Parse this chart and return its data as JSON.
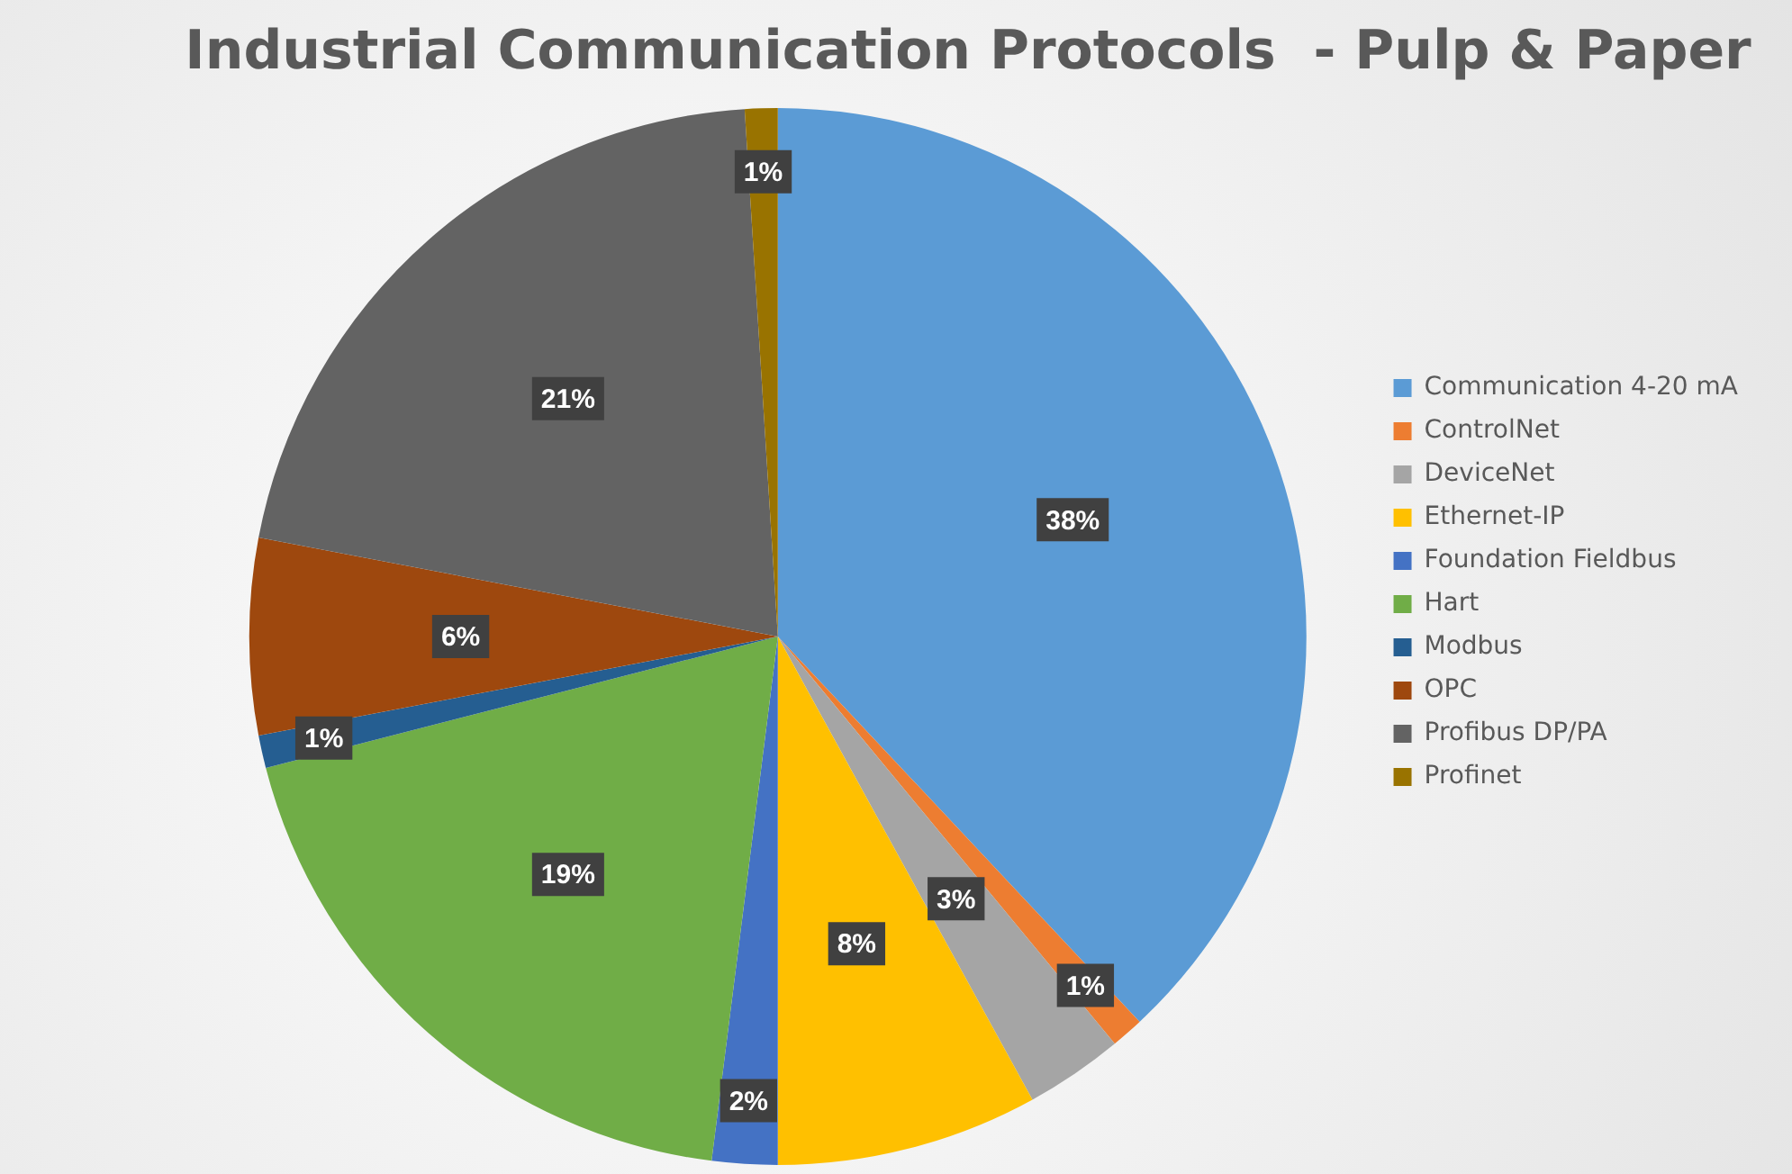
{
  "chart_data": {
    "type": "pie",
    "title": "Industrial Communication Protocols  - Pulp & Paper",
    "categories": [
      "Communication 4-20 mA",
      "ControlNet",
      "DeviceNet",
      "Ethernet-IP",
      "Foundation Fieldbus",
      "Hart",
      "Modbus",
      "OPC",
      "Profibus DP/PA",
      "Profinet"
    ],
    "values": [
      38,
      1,
      3,
      8,
      2,
      19,
      1,
      6,
      21,
      1
    ],
    "value_labels": [
      "38%",
      "1%",
      "3%",
      "8%",
      "2%",
      "19%",
      "1%",
      "6%",
      "21%",
      "1%"
    ],
    "colors": [
      "#5b9bd5",
      "#ed7d31",
      "#a5a5a5",
      "#ffc000",
      "#4472c4",
      "#70ad47",
      "#255e91",
      "#9e480e",
      "#636363",
      "#997300"
    ],
    "legend": "right"
  }
}
